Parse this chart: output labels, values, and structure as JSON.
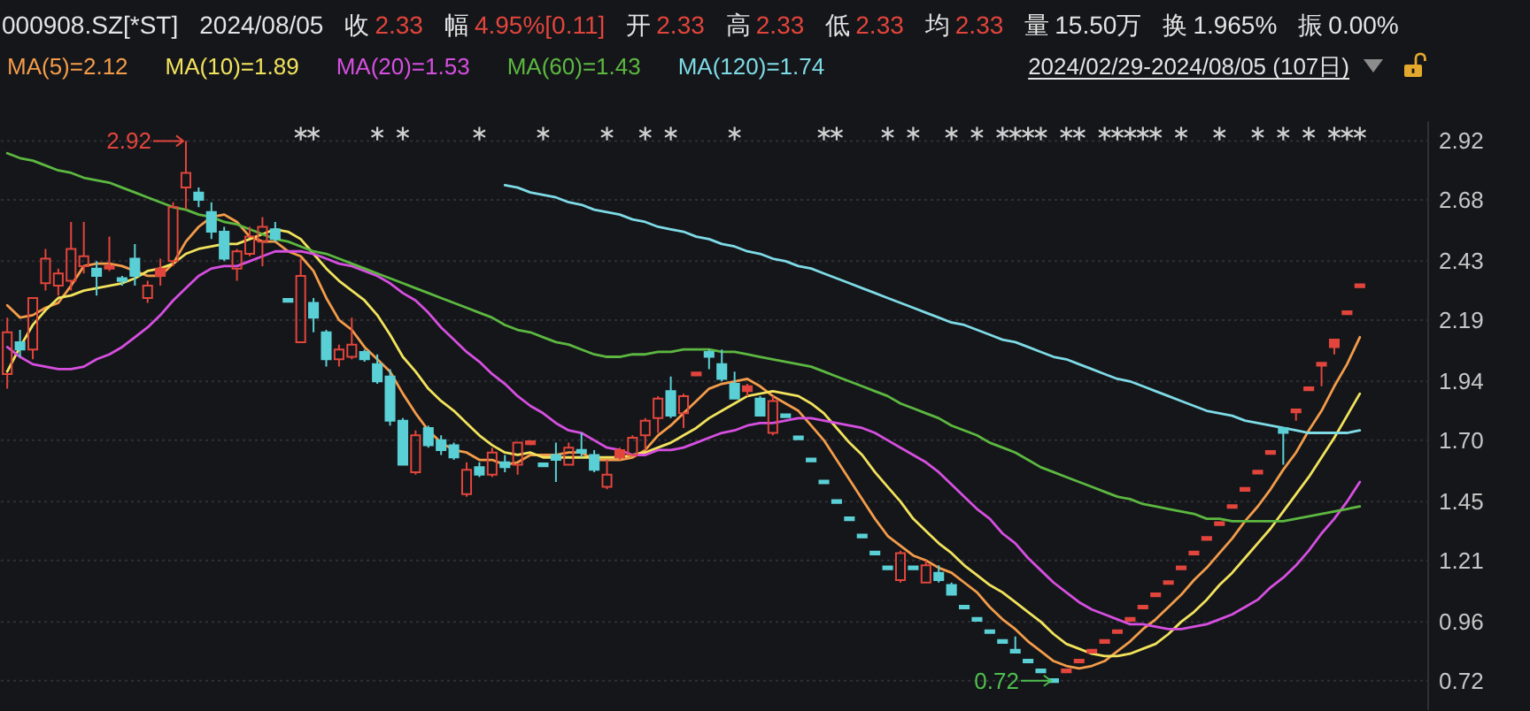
{
  "chart_data": {
    "type": "candlestick",
    "title": "000908.SZ[*ST]",
    "categories": [
      null,
      null,
      null,
      null,
      null,
      null,
      null,
      null,
      null,
      null,
      null,
      null,
      null,
      null,
      null,
      null,
      null,
      null,
      null,
      null,
      null,
      null,
      null,
      null,
      null,
      null,
      null,
      null,
      null,
      null,
      null,
      null,
      null,
      null,
      null,
      null,
      null,
      null,
      null,
      null,
      null,
      null,
      null,
      null,
      null,
      null,
      null,
      null,
      null,
      null,
      null,
      null,
      null,
      null,
      null,
      null,
      null,
      null,
      null,
      null,
      null,
      null,
      null,
      null,
      null,
      null,
      null,
      null,
      null,
      null,
      null,
      null,
      null,
      null,
      null,
      null,
      null,
      null,
      null,
      null,
      null,
      null,
      null,
      null,
      null,
      null,
      null,
      null,
      null,
      null,
      null,
      null,
      null,
      null,
      null,
      null,
      null,
      null,
      null,
      null,
      null,
      null,
      null,
      null,
      null,
      null,
      null
    ],
    "ohlc": [
      [
        1.97,
        2.2,
        1.91,
        2.14
      ],
      [
        2.1,
        2.15,
        2.04,
        2.07
      ],
      [
        2.07,
        2.28,
        2.03,
        2.28
      ],
      [
        2.34,
        2.48,
        2.31,
        2.44
      ],
      [
        2.33,
        2.4,
        2.29,
        2.38
      ],
      [
        2.35,
        2.59,
        2.31,
        2.48
      ],
      [
        2.41,
        2.59,
        2.38,
        2.45
      ],
      [
        2.4,
        2.43,
        2.29,
        2.37
      ],
      [
        2.4,
        2.53,
        2.39,
        2.41
      ],
      [
        2.36,
        2.37,
        2.33,
        2.35
      ],
      [
        2.44,
        2.5,
        2.33,
        2.37
      ],
      [
        2.28,
        2.35,
        2.26,
        2.33
      ],
      [
        2.37,
        2.44,
        2.33,
        2.4
      ],
      [
        2.43,
        2.67,
        2.41,
        2.65
      ],
      [
        2.73,
        2.92,
        2.64,
        2.79
      ],
      [
        2.71,
        2.73,
        2.65,
        2.68
      ],
      [
        2.63,
        2.67,
        2.52,
        2.55
      ],
      [
        2.55,
        2.57,
        2.43,
        2.44
      ],
      [
        2.4,
        2.48,
        2.35,
        2.47
      ],
      [
        2.46,
        2.57,
        2.45,
        2.53
      ],
      [
        2.51,
        2.61,
        2.41,
        2.57
      ],
      [
        2.56,
        2.59,
        2.51,
        2.52
      ],
      [
        2.27,
        2.27,
        2.27,
        2.27
      ],
      [
        2.1,
        2.44,
        2.1,
        2.37
      ],
      [
        2.26,
        2.28,
        2.14,
        2.2
      ],
      [
        2.14,
        2.15,
        2.0,
        2.03
      ],
      [
        2.03,
        2.09,
        2.0,
        2.07
      ],
      [
        2.04,
        2.2,
        2.03,
        2.09
      ],
      [
        2.06,
        2.07,
        2.02,
        2.03
      ],
      [
        2.01,
        2.05,
        1.93,
        1.94
      ],
      [
        1.96,
        1.99,
        1.76,
        1.78
      ],
      [
        1.78,
        1.79,
        1.6,
        1.6
      ],
      [
        1.57,
        1.74,
        1.56,
        1.72
      ],
      [
        1.75,
        1.76,
        1.67,
        1.68
      ],
      [
        1.7,
        1.72,
        1.64,
        1.66
      ],
      [
        1.68,
        1.69,
        1.62,
        1.63
      ],
      [
        1.48,
        1.61,
        1.47,
        1.58
      ],
      [
        1.59,
        1.61,
        1.55,
        1.56
      ],
      [
        1.56,
        1.67,
        1.55,
        1.65
      ],
      [
        1.61,
        1.64,
        1.57,
        1.59
      ],
      [
        1.6,
        1.69,
        1.56,
        1.69
      ],
      [
        1.69,
        1.7,
        1.68,
        1.69
      ],
      [
        1.6,
        1.6,
        1.6,
        1.6
      ],
      [
        1.64,
        1.69,
        1.53,
        1.62
      ],
      [
        1.6,
        1.69,
        1.6,
        1.67
      ],
      [
        1.66,
        1.73,
        1.63,
        1.65
      ],
      [
        1.64,
        1.66,
        1.57,
        1.58
      ],
      [
        1.51,
        1.62,
        1.5,
        1.56
      ],
      [
        1.63,
        1.67,
        1.62,
        1.66
      ],
      [
        1.64,
        1.72,
        1.64,
        1.71
      ],
      [
        1.72,
        1.79,
        1.66,
        1.78
      ],
      [
        1.79,
        1.88,
        1.73,
        1.87
      ],
      [
        1.9,
        1.96,
        1.79,
        1.8
      ],
      [
        1.81,
        1.89,
        1.75,
        1.88
      ],
      [
        1.97,
        1.97,
        1.97,
        1.97
      ],
      [
        2.06,
        2.07,
        1.99,
        2.04
      ],
      [
        2.01,
        2.07,
        1.94,
        1.95
      ],
      [
        1.93,
        1.98,
        1.87,
        1.87
      ],
      [
        1.9,
        1.93,
        1.88,
        1.92
      ],
      [
        1.87,
        1.88,
        1.8,
        1.8
      ],
      [
        1.73,
        1.88,
        1.72,
        1.86
      ],
      [
        1.8,
        1.8,
        1.8,
        1.8
      ],
      [
        1.71,
        1.71,
        1.71,
        1.71
      ],
      [
        1.62,
        1.62,
        1.62,
        1.62
      ],
      [
        1.53,
        1.53,
        1.53,
        1.53
      ],
      [
        1.45,
        1.45,
        1.45,
        1.45
      ],
      [
        1.38,
        1.38,
        1.38,
        1.38
      ],
      [
        1.31,
        1.31,
        1.31,
        1.31
      ],
      [
        1.24,
        1.24,
        1.24,
        1.24
      ],
      [
        1.18,
        1.18,
        1.18,
        1.18
      ],
      [
        1.13,
        1.25,
        1.12,
        1.24
      ],
      [
        1.18,
        1.18,
        1.18,
        1.18
      ],
      [
        1.12,
        1.21,
        1.12,
        1.19
      ],
      [
        1.16,
        1.19,
        1.12,
        1.13
      ],
      [
        1.11,
        1.12,
        1.07,
        1.07
      ],
      [
        1.02,
        1.02,
        1.02,
        1.02
      ],
      [
        0.97,
        0.97,
        0.97,
        0.97
      ],
      [
        0.92,
        0.92,
        0.92,
        0.92
      ],
      [
        0.88,
        0.88,
        0.88,
        0.88
      ],
      [
        0.84,
        0.9,
        0.84,
        0.84
      ],
      [
        0.8,
        0.8,
        0.8,
        0.8
      ],
      [
        0.76,
        0.76,
        0.76,
        0.76
      ],
      [
        0.72,
        0.72,
        0.72,
        0.72
      ],
      [
        0.76,
        0.76,
        0.76,
        0.76
      ],
      [
        0.8,
        0.8,
        0.8,
        0.8
      ],
      [
        0.84,
        0.84,
        0.84,
        0.84
      ],
      [
        0.88,
        0.88,
        0.88,
        0.88
      ],
      [
        0.92,
        0.92,
        0.92,
        0.92
      ],
      [
        0.97,
        0.97,
        0.97,
        0.97
      ],
      [
        1.02,
        1.02,
        1.02,
        1.02
      ],
      [
        1.07,
        1.07,
        1.07,
        1.07
      ],
      [
        1.12,
        1.12,
        1.12,
        1.12
      ],
      [
        1.18,
        1.18,
        1.18,
        1.18
      ],
      [
        1.24,
        1.24,
        1.24,
        1.24
      ],
      [
        1.3,
        1.3,
        1.3,
        1.3
      ],
      [
        1.36,
        1.36,
        1.36,
        1.36
      ],
      [
        1.43,
        1.43,
        1.43,
        1.43
      ],
      [
        1.5,
        1.5,
        1.5,
        1.5
      ],
      [
        1.57,
        1.57,
        1.57,
        1.57
      ],
      [
        1.65,
        1.65,
        1.65,
        1.65
      ],
      [
        1.75,
        1.75,
        1.6,
        1.73
      ],
      [
        1.82,
        1.82,
        1.78,
        1.82
      ],
      [
        1.91,
        1.91,
        1.91,
        1.91
      ],
      [
        2.01,
        2.01,
        1.92,
        2.01
      ],
      [
        2.08,
        2.11,
        2.05,
        2.11
      ],
      [
        2.22,
        2.22,
        2.22,
        2.22
      ],
      [
        2.33,
        2.33,
        2.33,
        2.33
      ]
    ],
    "colors": [
      "#e2453c",
      "#5ad0d6",
      "#e2453c",
      "#e2453c",
      "#e2453c",
      "#e2453c",
      "#e2453c",
      "#5ad0d6",
      "#e2453c",
      "#5ad0d6",
      "#5ad0d6",
      "#e2453c",
      "#e2453c",
      "#e2453c",
      "#e2453c",
      "#5ad0d6",
      "#5ad0d6",
      "#5ad0d6",
      "#e2453c",
      "#e2453c",
      "#e2453c",
      "#5ad0d6",
      "#5ad0d6",
      "#e2453c",
      "#5ad0d6",
      "#5ad0d6",
      "#e2453c",
      "#e2453c",
      "#5ad0d6",
      "#5ad0d6",
      "#5ad0d6",
      "#5ad0d6",
      "#e2453c",
      "#5ad0d6",
      "#5ad0d6",
      "#5ad0d6",
      "#e2453c",
      "#5ad0d6",
      "#e2453c",
      "#5ad0d6",
      "#e2453c",
      "#e2453c",
      "#5ad0d6",
      "#5ad0d6",
      "#e2453c",
      "#5ad0d6",
      "#5ad0d6",
      "#e2453c",
      "#e2453c",
      "#e2453c",
      "#e2453c",
      "#e2453c",
      "#5ad0d6",
      "#e2453c",
      "#e2453c",
      "#5ad0d6",
      "#5ad0d6",
      "#5ad0d6",
      "#e2453c",
      "#5ad0d6",
      "#e2453c",
      "#5ad0d6",
      "#5ad0d6",
      "#5ad0d6",
      "#5ad0d6",
      "#5ad0d6",
      "#5ad0d6",
      "#5ad0d6",
      "#5ad0d6",
      "#5ad0d6",
      "#e2453c",
      "#5ad0d6",
      "#e2453c",
      "#5ad0d6",
      "#5ad0d6",
      "#5ad0d6",
      "#5ad0d6",
      "#5ad0d6",
      "#5ad0d6",
      "#5ad0d6",
      "#5ad0d6",
      "#5ad0d6",
      "#5ad0d6",
      "#e2453c",
      "#e2453c",
      "#e2453c",
      "#e2453c",
      "#e2453c",
      "#e2453c",
      "#e2453c",
      "#e2453c",
      "#e2453c",
      "#e2453c",
      "#e2453c",
      "#e2453c",
      "#e2453c",
      "#e2453c",
      "#e2453c",
      "#e2453c",
      "#e2453c",
      "#5ad0d6",
      "#e2453c",
      "#e2453c",
      "#e2453c",
      "#e2453c",
      "#e2453c",
      "#e2453c"
    ],
    "series": [
      {
        "type": "line",
        "name": "MA(5)=2.12",
        "color": "#f39c4a",
        "values": [
          2.25,
          2.2,
          2.21,
          2.24,
          2.26,
          2.33,
          2.41,
          2.42,
          2.42,
          2.41,
          2.39,
          2.37,
          2.37,
          2.42,
          2.51,
          2.57,
          2.61,
          2.62,
          2.59,
          2.53,
          2.51,
          2.51,
          2.47,
          2.45,
          2.39,
          2.28,
          2.19,
          2.15,
          2.08,
          2.03,
          1.98,
          1.89,
          1.81,
          1.74,
          1.69,
          1.66,
          1.65,
          1.62,
          1.62,
          1.6,
          1.61,
          1.64,
          1.64,
          1.64,
          1.65,
          1.65,
          1.62,
          1.62,
          1.62,
          1.63,
          1.66,
          1.72,
          1.76,
          1.81,
          1.86,
          1.91,
          1.93,
          1.94,
          1.95,
          1.92,
          1.88,
          1.85,
          1.82,
          1.76,
          1.7,
          1.62,
          1.54,
          1.46,
          1.38,
          1.31,
          1.27,
          1.23,
          1.21,
          1.18,
          1.16,
          1.12,
          1.08,
          1.02,
          0.97,
          0.93,
          0.88,
          0.84,
          0.8,
          0.78,
          0.77,
          0.78,
          0.8,
          0.84,
          0.88,
          0.93,
          0.97,
          1.02,
          1.07,
          1.13,
          1.18,
          1.24,
          1.3,
          1.37,
          1.43,
          1.5,
          1.58,
          1.65,
          1.74,
          1.82,
          1.92,
          2.01,
          2.12
        ]
      },
      {
        "type": "line",
        "name": "MA(10)=1.89",
        "color": "#f2e35c",
        "values": [
          1.98,
          2.08,
          2.17,
          2.23,
          2.28,
          2.29,
          2.31,
          2.32,
          2.33,
          2.34,
          2.36,
          2.39,
          2.4,
          2.42,
          2.46,
          2.48,
          2.49,
          2.5,
          2.5,
          2.52,
          2.54,
          2.56,
          2.55,
          2.52,
          2.46,
          2.4,
          2.35,
          2.31,
          2.27,
          2.21,
          2.13,
          2.04,
          1.98,
          1.91,
          1.86,
          1.82,
          1.77,
          1.72,
          1.68,
          1.65,
          1.64,
          1.65,
          1.63,
          1.63,
          1.63,
          1.63,
          1.63,
          1.63,
          1.63,
          1.64,
          1.65,
          1.67,
          1.69,
          1.72,
          1.75,
          1.79,
          1.82,
          1.85,
          1.88,
          1.89,
          1.9,
          1.89,
          1.88,
          1.85,
          1.81,
          1.75,
          1.69,
          1.64,
          1.57,
          1.51,
          1.45,
          1.38,
          1.33,
          1.28,
          1.24,
          1.19,
          1.15,
          1.11,
          1.08,
          1.04,
          1.0,
          0.96,
          0.91,
          0.87,
          0.85,
          0.83,
          0.82,
          0.82,
          0.83,
          0.85,
          0.87,
          0.91,
          0.96,
          1.0,
          1.05,
          1.11,
          1.16,
          1.22,
          1.28,
          1.34,
          1.41,
          1.48,
          1.55,
          1.63,
          1.71,
          1.8,
          1.89
        ]
      },
      {
        "type": "line",
        "name": "MA(20)=1.53",
        "color": "#d64fe0",
        "values": [
          2.08,
          2.04,
          2.01,
          2.0,
          1.99,
          1.99,
          2.0,
          2.03,
          2.05,
          2.08,
          2.12,
          2.16,
          2.21,
          2.27,
          2.32,
          2.37,
          2.4,
          2.41,
          2.41,
          2.43,
          2.45,
          2.47,
          2.47,
          2.47,
          2.46,
          2.44,
          2.42,
          2.41,
          2.39,
          2.37,
          2.34,
          2.3,
          2.27,
          2.22,
          2.16,
          2.11,
          2.06,
          2.02,
          1.97,
          1.93,
          1.88,
          1.84,
          1.81,
          1.77,
          1.74,
          1.73,
          1.7,
          1.67,
          1.66,
          1.64,
          1.64,
          1.66,
          1.66,
          1.67,
          1.69,
          1.71,
          1.73,
          1.74,
          1.76,
          1.77,
          1.77,
          1.78,
          1.79,
          1.79,
          1.78,
          1.77,
          1.76,
          1.75,
          1.73,
          1.7,
          1.67,
          1.64,
          1.61,
          1.57,
          1.52,
          1.47,
          1.42,
          1.38,
          1.32,
          1.28,
          1.22,
          1.17,
          1.12,
          1.08,
          1.04,
          1.01,
          0.99,
          0.97,
          0.95,
          0.95,
          0.94,
          0.93,
          0.93,
          0.94,
          0.95,
          0.97,
          0.99,
          1.02,
          1.05,
          1.1,
          1.14,
          1.19,
          1.25,
          1.32,
          1.38,
          1.45,
          1.53
        ]
      },
      {
        "type": "line",
        "name": "MA(60)=1.43",
        "color": "#5cb840",
        "values": [
          2.87,
          2.85,
          2.84,
          2.82,
          2.8,
          2.79,
          2.77,
          2.76,
          2.75,
          2.73,
          2.71,
          2.69,
          2.67,
          2.65,
          2.64,
          2.62,
          2.61,
          2.59,
          2.58,
          2.56,
          2.54,
          2.52,
          2.51,
          2.49,
          2.47,
          2.46,
          2.44,
          2.42,
          2.4,
          2.38,
          2.36,
          2.34,
          2.32,
          2.3,
          2.28,
          2.26,
          2.24,
          2.22,
          2.2,
          2.17,
          2.15,
          2.14,
          2.12,
          2.1,
          2.09,
          2.07,
          2.05,
          2.04,
          2.04,
          2.05,
          2.05,
          2.06,
          2.06,
          2.07,
          2.07,
          2.07,
          2.06,
          2.06,
          2.05,
          2.04,
          2.03,
          2.02,
          2.01,
          2.0,
          1.98,
          1.96,
          1.94,
          1.92,
          1.9,
          1.88,
          1.85,
          1.83,
          1.81,
          1.79,
          1.76,
          1.74,
          1.72,
          1.69,
          1.67,
          1.65,
          1.62,
          1.59,
          1.57,
          1.55,
          1.53,
          1.51,
          1.49,
          1.47,
          1.46,
          1.44,
          1.43,
          1.42,
          1.41,
          1.4,
          1.38,
          1.38,
          1.37,
          1.37,
          1.37,
          1.37,
          1.37,
          1.38,
          1.39,
          1.4,
          1.41,
          1.42,
          1.43
        ]
      },
      {
        "type": "line",
        "name": "MA(120)=1.74",
        "color": "#7edbe6",
        "values": [
          null,
          null,
          null,
          null,
          null,
          null,
          null,
          null,
          null,
          null,
          null,
          null,
          null,
          null,
          null,
          null,
          null,
          null,
          null,
          null,
          null,
          null,
          null,
          null,
          null,
          null,
          null,
          null,
          null,
          null,
          null,
          null,
          null,
          null,
          null,
          null,
          null,
          null,
          null,
          2.74,
          2.73,
          2.71,
          2.7,
          2.69,
          2.67,
          2.66,
          2.64,
          2.63,
          2.62,
          2.6,
          2.59,
          2.57,
          2.56,
          2.55,
          2.53,
          2.52,
          2.5,
          2.49,
          2.47,
          2.46,
          2.44,
          2.43,
          2.41,
          2.4,
          2.38,
          2.36,
          2.34,
          2.32,
          2.3,
          2.28,
          2.26,
          2.24,
          2.22,
          2.2,
          2.18,
          2.17,
          2.15,
          2.13,
          2.11,
          2.1,
          2.08,
          2.06,
          2.04,
          2.03,
          2.01,
          1.99,
          1.97,
          1.95,
          1.94,
          1.92,
          1.9,
          1.88,
          1.86,
          1.84,
          1.82,
          1.81,
          1.8,
          1.78,
          1.77,
          1.76,
          1.75,
          1.74,
          1.73,
          1.73,
          1.73,
          1.73,
          1.74
        ]
      },
      {
        "type": "scatter",
        "marker": "cross",
        "color": "#cfcfcf",
        "values": [
          null,
          null,
          null,
          null,
          null,
          null,
          null,
          null,
          null,
          null,
          null,
          null,
          null,
          null,
          null,
          null,
          null,
          null,
          null,
          null,
          null,
          null,
          null,
          2.95,
          2.95,
          null,
          null,
          null,
          null,
          2.95,
          null,
          2.95,
          null,
          null,
          null,
          null,
          null,
          2.95,
          null,
          null,
          null,
          null,
          2.95,
          null,
          null,
          null,
          null,
          2.95,
          null,
          null,
          2.95,
          null,
          2.95,
          null,
          null,
          null,
          null,
          2.95,
          null,
          null,
          null,
          null,
          null,
          null,
          2.95,
          2.95,
          null,
          null,
          null,
          2.95,
          null,
          2.95,
          null,
          null,
          2.95,
          null,
          2.95,
          null,
          2.95,
          2.95,
          2.95,
          2.95,
          null,
          2.95,
          2.95,
          null,
          2.95,
          2.95,
          2.95,
          2.95,
          2.95,
          null,
          2.95,
          null,
          null,
          2.95,
          null,
          null,
          2.95,
          null,
          2.95,
          null,
          2.95,
          null,
          2.95,
          2.95,
          2.95
        ]
      }
    ],
    "ylim": [
      0.6,
      3.0
    ],
    "yticks": [
      2.92,
      2.68,
      2.43,
      2.19,
      1.94,
      {
        "value": 1.7,
        "label": "1.70"
      },
      1.45,
      1.21,
      0.96,
      0.72
    ],
    "tick_labels": "y",
    "grid": "y",
    "legend": "top left",
    "annotations": [
      "2024/08/05",
      "收 2.33",
      "幅 4.95%[0.11]",
      "开 2.33",
      "高 2.33",
      "低 2.33",
      "均 2.33",
      "量 15.50万",
      "换 1.965%",
      "振 0.00%",
      "2024/02/29-2024/08/05 (107日)",
      "2.92",
      "0.72"
    ]
  }
}
